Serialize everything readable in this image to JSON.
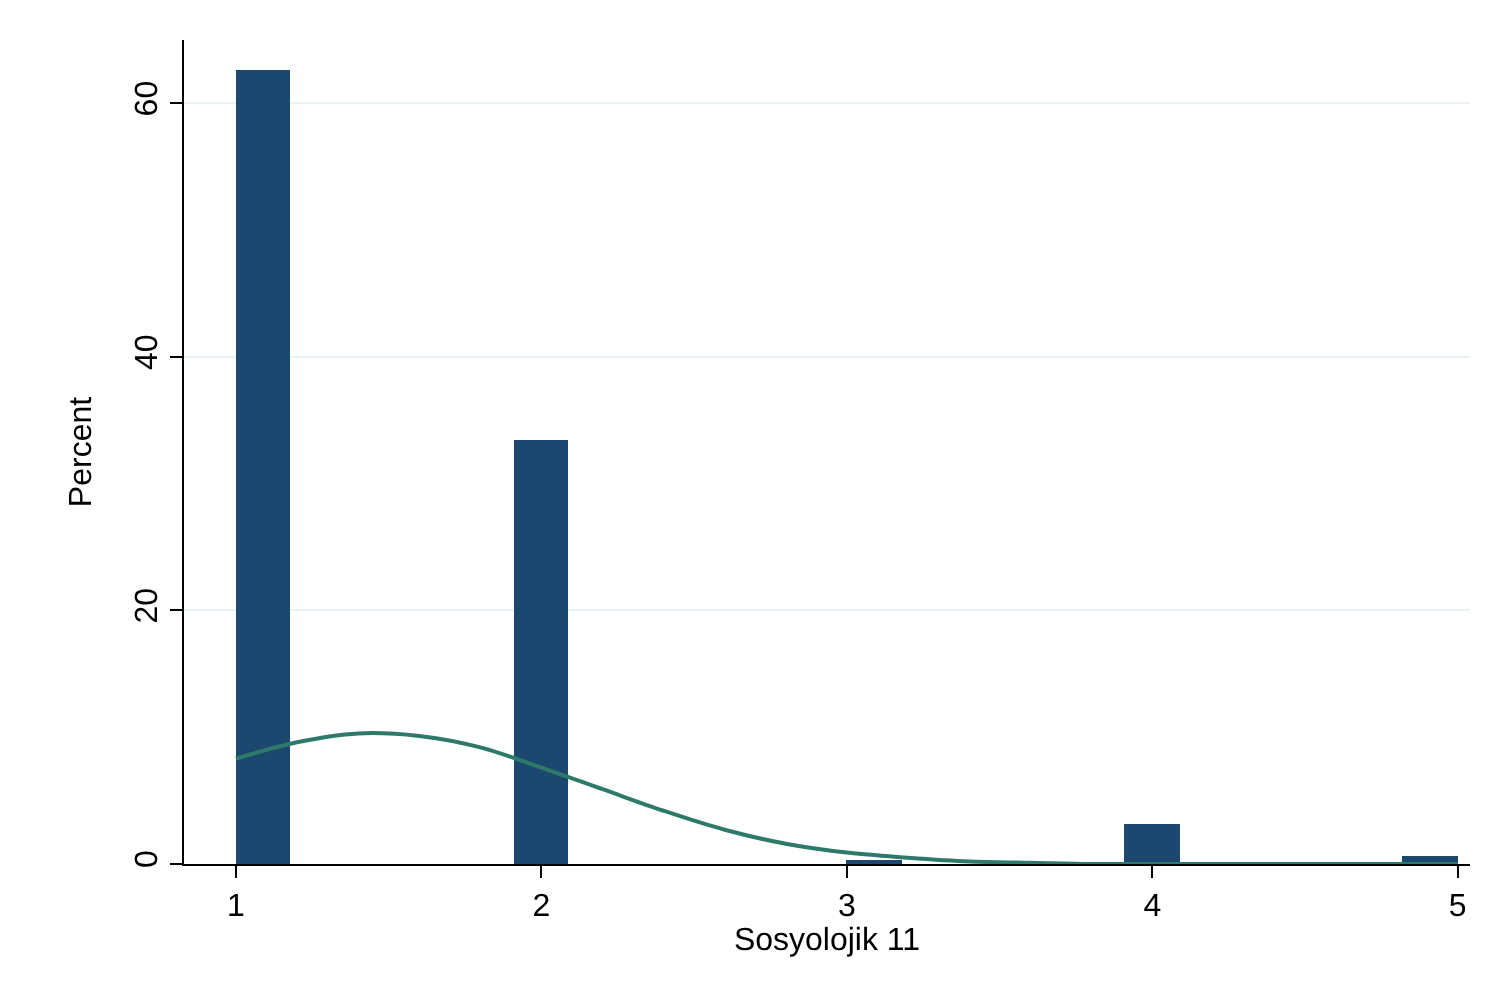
{
  "chart_data": {
    "type": "histogram",
    "xlabel": "Sosyolojik 11",
    "ylabel": "Percent",
    "bins": [
      1,
      1.18,
      1.91,
      2.09,
      3.0,
      3.18,
      3.91,
      4.09,
      4.82,
      5.0
    ],
    "values": [
      62.7,
      0,
      33.5,
      0,
      0.2,
      0,
      3.1,
      0,
      0.6
    ],
    "color": "#1c4870",
    "series": [
      {
        "type": "line",
        "color": "#2e7a6a",
        "x": [
          1.0,
          1.2,
          1.4,
          1.6,
          1.8,
          2.0,
          2.2,
          2.4,
          2.6,
          2.8,
          3.0,
          3.2,
          3.4,
          3.6,
          3.8,
          4.0,
          4.5,
          5.0
        ],
        "values": [
          8.3,
          9.6,
          10.3,
          10.1,
          9.2,
          7.6,
          5.9,
          4.2,
          2.7,
          1.6,
          0.9,
          0.5,
          0.2,
          0.1,
          0,
          0,
          0,
          0
        ]
      }
    ],
    "xlim": [
      0.83,
      5.04
    ],
    "ylim": [
      0,
      65
    ],
    "xticks": [
      1,
      2,
      3,
      4,
      5
    ],
    "yticks": [
      0,
      20,
      40,
      60
    ],
    "grid": "y",
    "marker": "none",
    "line_style": "solid"
  }
}
